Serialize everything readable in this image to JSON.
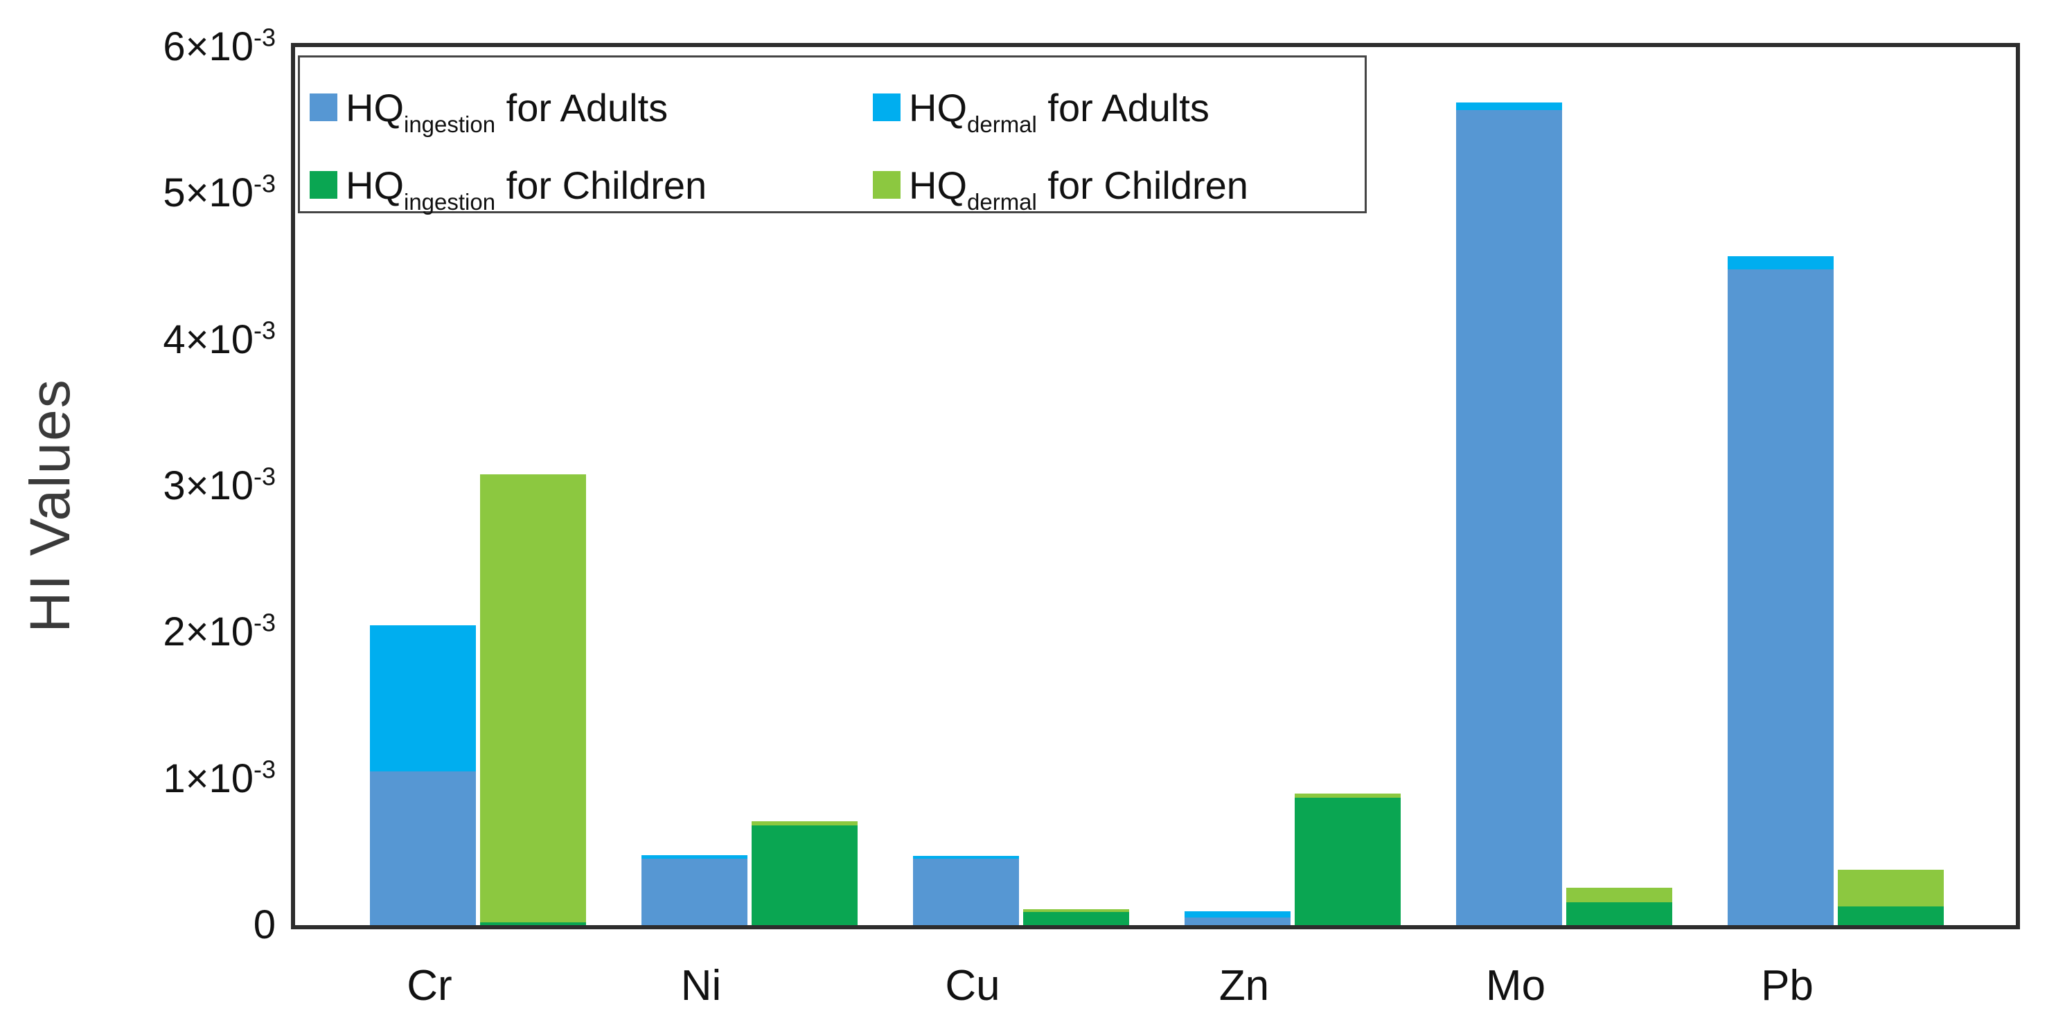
{
  "chart_data": {
    "type": "bar",
    "title": "",
    "ylabel": "HI Values",
    "xlabel": "",
    "grid": false,
    "legend_position": "top-left-inside",
    "y_axis": {
      "tick_values": [
        0,
        1,
        2,
        3,
        4,
        5,
        6
      ],
      "tick_exponent": "-3",
      "zero_label": "0",
      "times_ten_text": "×10",
      "ylim": [
        0,
        0.006
      ]
    },
    "categories": [
      "Cr",
      "Ni",
      "Cu",
      "Zn",
      "Mo",
      "Pb"
    ],
    "values_unit": "1e-3",
    "series": [
      {
        "name": "HQ ingestion for Adults",
        "stack": "adults",
        "color": "#5697D3",
        "values_e3": [
          1.05,
          0.455,
          0.455,
          0.05,
          5.57,
          4.48
        ]
      },
      {
        "name": "HQ dermal for Adults",
        "stack": "adults",
        "color": "#00AEEF",
        "values_e3": [
          1.0,
          0.025,
          0.02,
          0.045,
          0.05,
          0.09
        ]
      },
      {
        "name": "HQ ingestion for Children",
        "stack": "children",
        "color": "#0AA652",
        "values_e3": [
          0.02,
          0.68,
          0.09,
          0.87,
          0.155,
          0.13
        ]
      },
      {
        "name": "HQ dermal for Children",
        "stack": "children",
        "color": "#8CC840",
        "values_e3": [
          3.06,
          0.03,
          0.02,
          0.03,
          0.1,
          0.25
        ]
      }
    ],
    "legend": [
      {
        "prefix": "HQ",
        "sub": "ingestion",
        "suffix": " for Adults",
        "color": "#5697D3"
      },
      {
        "prefix": "HQ",
        "sub": "dermal",
        "suffix": " for Adults",
        "color": "#00AEEF"
      },
      {
        "prefix": "HQ",
        "sub": "ingestion",
        "suffix": " for Children",
        "color": "#0AA652"
      },
      {
        "prefix": "HQ",
        "sub": "dermal",
        "suffix": " for Children",
        "color": "#8CC840"
      }
    ],
    "colors": {
      "frame": "#2d2d2d",
      "text": "#111111",
      "axis_title": "#3a3a3a",
      "background": "#ffffff"
    }
  }
}
